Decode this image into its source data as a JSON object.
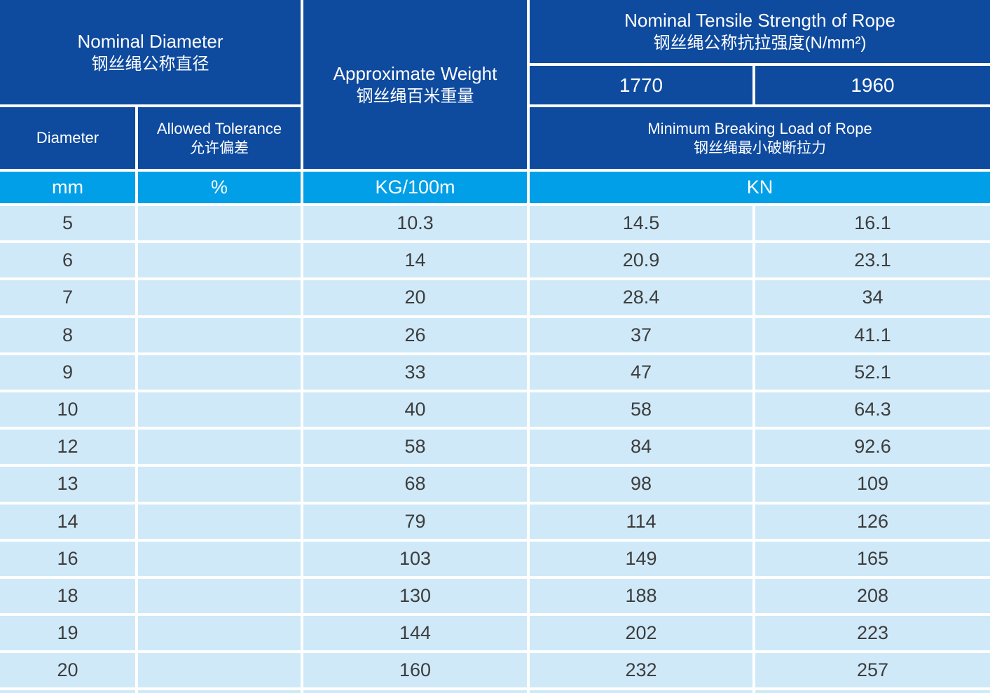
{
  "colors": {
    "header_navy": "#0e4a9e",
    "unit_cyan": "#009fe8",
    "row_light_blue": "#cfe9f8",
    "separator_white": "#ffffff",
    "data_text": "#3d3d3d",
    "header_text": "#ffffff"
  },
  "table": {
    "header": {
      "nominal_diameter_en": "Nominal Diameter",
      "nominal_diameter_zh": "钢丝绳公称直径",
      "approximate_weight_en": "Approximate Weight",
      "approximate_weight_zh": "钢丝绳百米重量",
      "tensile_en": "Nominal Tensile Strength of Rope",
      "tensile_zh": "钢丝绳公称抗拉强度(N/mm²)",
      "grade_1770": "1770",
      "grade_1960": "1960",
      "diameter_label": "Diameter",
      "tolerance_en": "Allowed Tolerance",
      "tolerance_zh": "允许偏差",
      "breaking_en": "Minimum Breaking Load of Rope",
      "breaking_zh": "钢丝绳最小破断拉力",
      "unit_mm": "mm",
      "unit_percent": "%",
      "unit_kg": "KG/100m",
      "unit_kn": "KN"
    },
    "rows": [
      {
        "diameter": "5",
        "tolerance": "",
        "weight": "10.3",
        "load_1770": "14.5",
        "load_1960": "16.1"
      },
      {
        "diameter": "6",
        "tolerance": "",
        "weight": "14",
        "load_1770": "20.9",
        "load_1960": "23.1"
      },
      {
        "diameter": "7",
        "tolerance": "",
        "weight": "20",
        "load_1770": "28.4",
        "load_1960": "34"
      },
      {
        "diameter": "8",
        "tolerance": "",
        "weight": "26",
        "load_1770": "37",
        "load_1960": "41.1"
      },
      {
        "diameter": "9",
        "tolerance": "",
        "weight": "33",
        "load_1770": "47",
        "load_1960": "52.1"
      },
      {
        "diameter": "10",
        "tolerance": "",
        "weight": "40",
        "load_1770": "58",
        "load_1960": "64.3"
      },
      {
        "diameter": "12",
        "tolerance": "",
        "weight": "58",
        "load_1770": "84",
        "load_1960": "92.6"
      },
      {
        "diameter": "13",
        "tolerance": "",
        "weight": "68",
        "load_1770": "98",
        "load_1960": "109"
      },
      {
        "diameter": "14",
        "tolerance": "",
        "weight": "79",
        "load_1770": "114",
        "load_1960": "126"
      },
      {
        "diameter": "16",
        "tolerance": "",
        "weight": "103",
        "load_1770": "149",
        "load_1960": "165"
      },
      {
        "diameter": "18",
        "tolerance": "",
        "weight": "130",
        "load_1770": "188",
        "load_1960": "208"
      },
      {
        "diameter": "19",
        "tolerance": "",
        "weight": "144",
        "load_1770": "202",
        "load_1960": "223"
      },
      {
        "diameter": "20",
        "tolerance": "",
        "weight": "160",
        "load_1770": "232",
        "load_1960": "257"
      }
    ]
  },
  "chart_data": {
    "type": "table",
    "title": "Nominal Tensile Strength of Rope 钢丝绳公称抗拉强度(N/mm²)",
    "columns": [
      "Diameter (mm)",
      "Allowed Tolerance 允许偏差 (%)",
      "Approximate Weight 钢丝绳百米重量 (KG/100m)",
      "Minimum Breaking Load of Rope 钢丝绳最小破断拉力 at 1770 N/mm² (KN)",
      "Minimum Breaking Load of Rope 钢丝绳最小破断拉力 at 1960 N/mm² (KN)"
    ],
    "rows": [
      [
        5,
        null,
        10.3,
        14.5,
        16.1
      ],
      [
        6,
        null,
        14,
        20.9,
        23.1
      ],
      [
        7,
        null,
        20,
        28.4,
        34
      ],
      [
        8,
        null,
        26,
        37,
        41.1
      ],
      [
        9,
        null,
        33,
        47,
        52.1
      ],
      [
        10,
        null,
        40,
        58,
        64.3
      ],
      [
        12,
        null,
        58,
        84,
        92.6
      ],
      [
        13,
        null,
        68,
        98,
        109
      ],
      [
        14,
        null,
        79,
        114,
        126
      ],
      [
        16,
        null,
        103,
        149,
        165
      ],
      [
        18,
        null,
        130,
        188,
        208
      ],
      [
        19,
        null,
        144,
        202,
        223
      ],
      [
        20,
        null,
        160,
        232,
        257
      ]
    ]
  }
}
